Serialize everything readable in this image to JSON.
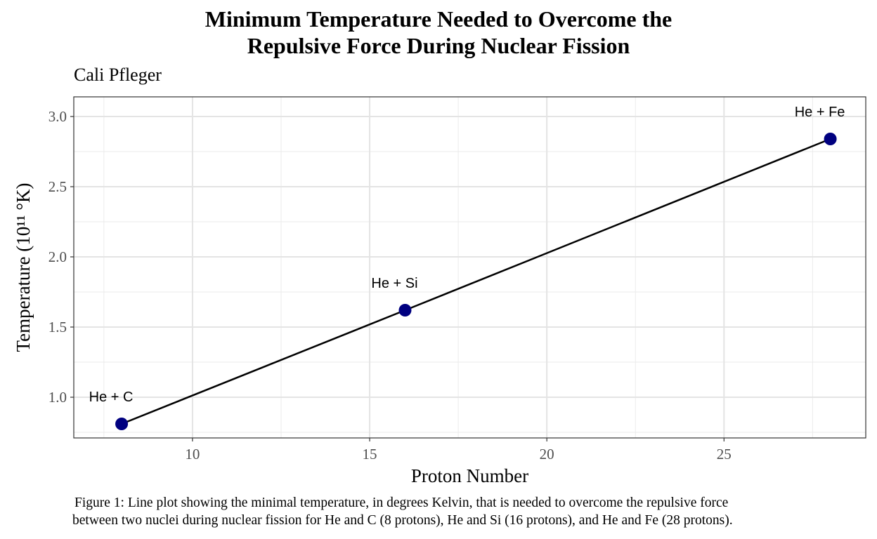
{
  "chart_data": {
    "type": "line",
    "title_line1": "Minimum Temperature Needed to Overcome the",
    "title_line2": "Repulsive Force During Nuclear Fission",
    "subtitle": "Cali Pfleger",
    "xlabel": "Proton Number",
    "ylabel": "Temperature (10¹¹ °K)",
    "xlim": [
      6.65,
      29.0
    ],
    "ylim": [
      0.71,
      3.14
    ],
    "x_ticks": [
      10,
      15,
      20,
      25
    ],
    "y_ticks": [
      1.0,
      1.5,
      2.0,
      2.5,
      3.0
    ],
    "x_tick_labels": [
      "10",
      "15",
      "20",
      "25"
    ],
    "y_tick_labels": [
      "1.0",
      "1.5",
      "2.0",
      "2.5",
      "3.0"
    ],
    "grid": true,
    "series": [
      {
        "x": [
          8,
          16,
          28
        ],
        "y": [
          0.81,
          1.62,
          2.84
        ],
        "labels": [
          "He + C",
          "He + Si",
          "He + Fe"
        ],
        "point_color": "#000080",
        "line_color": "#000000"
      }
    ]
  },
  "caption_line1": "Figure 1: Line plot showing the minimal temperature, in degrees Kelvin, that is needed to overcome the repulsive force",
  "caption_line2": "between two nuclei during nuclear fission for He and C (8 protons), He and Si (16 protons), and He and Fe (28 protons)."
}
